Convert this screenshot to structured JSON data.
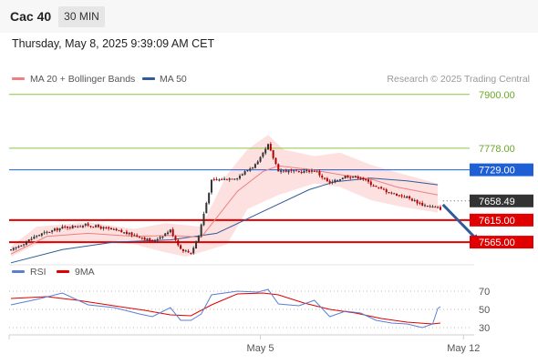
{
  "header": {
    "instrument": "Cac 40",
    "timeframe": "30 MIN",
    "datetime": "Thursday, May 8, 2025 9:39:09 AM CET"
  },
  "legend": {
    "ma20_label": "MA 20 + Bollinger Bands",
    "ma50_label": "MA 50",
    "credit": "Research © 2025 Trading Central",
    "rsi_label": "RSI",
    "rsi_ma_label": "9MA"
  },
  "colors": {
    "ma20": "#f08080",
    "bollinger_fill": "#fde0e0",
    "ma50": "#2f5b9a",
    "green_level": "#8cc63f",
    "blue_level": "#1f5fd6",
    "red_level": "#e00000",
    "current_price": "#333333",
    "arrow": "#2f5b9a",
    "candle_up": "#333333",
    "candle_down": "#b00000",
    "rsi": "#5b7fd4",
    "rsi_ma": "#e00000"
  },
  "chart_data": [
    {
      "type": "candlestick",
      "x_tick_labels": [
        "May 5",
        "May 12"
      ],
      "ylim": [
        7528,
        7916
      ],
      "price_levels": [
        {
          "value": 7900.0,
          "label": "7900.00",
          "kind": "green"
        },
        {
          "value": 7778.0,
          "label": "7778.00",
          "kind": "green"
        },
        {
          "value": 7729.0,
          "label": "7729.00",
          "kind": "blue"
        },
        {
          "value": 7658.49,
          "label": "7658.49",
          "kind": "current"
        },
        {
          "value": 7615.0,
          "label": "7615.00",
          "kind": "red"
        },
        {
          "value": 7565.0,
          "label": "7565.00",
          "kind": "red"
        }
      ],
      "close_path": [
        [
          0,
          7546
        ],
        [
          10,
          7580
        ],
        [
          20,
          7598
        ],
        [
          30,
          7604
        ],
        [
          40,
          7592
        ],
        [
          50,
          7578
        ],
        [
          55,
          7566
        ],
        [
          62,
          7592
        ],
        [
          66,
          7550
        ],
        [
          70,
          7540
        ],
        [
          73,
          7580
        ],
        [
          78,
          7704
        ],
        [
          88,
          7712
        ],
        [
          96,
          7745
        ],
        [
          100,
          7785
        ],
        [
          104,
          7728
        ],
        [
          112,
          7724
        ],
        [
          118,
          7728
        ],
        [
          124,
          7698
        ],
        [
          130,
          7715
        ],
        [
          136,
          7712
        ],
        [
          142,
          7690
        ],
        [
          148,
          7676
        ],
        [
          154,
          7667
        ],
        [
          160,
          7650
        ],
        [
          167,
          7641
        ]
      ],
      "ma20_path": [
        [
          0,
          7538
        ],
        [
          14,
          7578
        ],
        [
          30,
          7585
        ],
        [
          48,
          7578
        ],
        [
          62,
          7580
        ],
        [
          74,
          7576
        ],
        [
          88,
          7680
        ],
        [
          98,
          7725
        ],
        [
          104,
          7738
        ],
        [
          116,
          7730
        ],
        [
          128,
          7718
        ],
        [
          140,
          7708
        ],
        [
          150,
          7690
        ],
        [
          166,
          7672
        ]
      ],
      "ma50_path": [
        [
          0,
          7518
        ],
        [
          20,
          7548
        ],
        [
          40,
          7565
        ],
        [
          62,
          7570
        ],
        [
          80,
          7585
        ],
        [
          100,
          7640
        ],
        [
          116,
          7684
        ],
        [
          126,
          7702
        ],
        [
          140,
          7710
        ],
        [
          154,
          7704
        ],
        [
          166,
          7695
        ]
      ],
      "bollinger_upper": [
        [
          0,
          7555
        ],
        [
          10,
          7600
        ],
        [
          30,
          7610
        ],
        [
          48,
          7595
        ],
        [
          60,
          7608
        ],
        [
          74,
          7600
        ],
        [
          84,
          7718
        ],
        [
          92,
          7775
        ],
        [
          100,
          7808
        ],
        [
          106,
          7775
        ],
        [
          118,
          7760
        ],
        [
          128,
          7768
        ],
        [
          140,
          7740
        ],
        [
          152,
          7720
        ],
        [
          166,
          7698
        ]
      ],
      "bollinger_lower": [
        [
          0,
          7532
        ],
        [
          10,
          7560
        ],
        [
          30,
          7568
        ],
        [
          48,
          7560
        ],
        [
          60,
          7542
        ],
        [
          68,
          7532
        ],
        [
          84,
          7560
        ],
        [
          92,
          7640
        ],
        [
          104,
          7672
        ],
        [
          118,
          7698
        ],
        [
          128,
          7690
        ],
        [
          140,
          7660
        ],
        [
          152,
          7645
        ],
        [
          166,
          7632
        ]
      ],
      "forecast": {
        "from": [
          168,
          7650
        ],
        "to": [
          181,
          7572
        ]
      }
    },
    {
      "type": "line",
      "series_names": [
        "RSI",
        "9MA"
      ],
      "y_tick_labels": [
        70,
        50,
        30
      ],
      "ylim": [
        22,
        82
      ],
      "rsi_path": [
        [
          0,
          55
        ],
        [
          10,
          61
        ],
        [
          20,
          68
        ],
        [
          30,
          55
        ],
        [
          40,
          52
        ],
        [
          50,
          45
        ],
        [
          55,
          42
        ],
        [
          62,
          52
        ],
        [
          66,
          38
        ],
        [
          70,
          38
        ],
        [
          74,
          45
        ],
        [
          78,
          66
        ],
        [
          88,
          70
        ],
        [
          96,
          69
        ],
        [
          100,
          72
        ],
        [
          104,
          56
        ],
        [
          112,
          54
        ],
        [
          118,
          60
        ],
        [
          124,
          42
        ],
        [
          130,
          48
        ],
        [
          136,
          46
        ],
        [
          142,
          38
        ],
        [
          148,
          35
        ],
        [
          154,
          34
        ],
        [
          160,
          30
        ],
        [
          164,
          34
        ],
        [
          166,
          51
        ],
        [
          167,
          53
        ]
      ],
      "rsi_ma_path": [
        [
          0,
          62
        ],
        [
          14,
          64
        ],
        [
          26,
          60
        ],
        [
          40,
          54
        ],
        [
          52,
          49
        ],
        [
          62,
          44
        ],
        [
          70,
          43
        ],
        [
          78,
          55
        ],
        [
          88,
          67
        ],
        [
          98,
          68
        ],
        [
          104,
          66
        ],
        [
          114,
          57
        ],
        [
          124,
          50
        ],
        [
          134,
          46
        ],
        [
          144,
          40
        ],
        [
          154,
          36
        ],
        [
          164,
          34
        ],
        [
          167,
          35
        ]
      ]
    }
  ]
}
